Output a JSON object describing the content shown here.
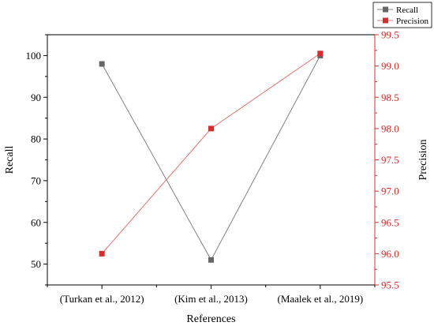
{
  "chart_data": {
    "type": "line",
    "title": "",
    "xlabel": "References",
    "categories": [
      "(Turkan et al., 2012)",
      "(Kim et al., 2013)",
      "(Maalek et al., 2019)"
    ],
    "left_axis": {
      "label": "Recall",
      "ylim": [
        45,
        105
      ],
      "ticks": [
        50,
        60,
        70,
        80,
        90,
        100
      ],
      "color": "#000000"
    },
    "right_axis": {
      "label": "Precision",
      "ylim": [
        95.5,
        99.5
      ],
      "ticks": [
        "95.5",
        "96.0",
        "96.5",
        "97.0",
        "97.5",
        "98.0",
        "98.5",
        "99.0",
        "99.5"
      ],
      "color": "#d32f2f"
    },
    "series": [
      {
        "name": "Recall",
        "axis": "left",
        "values": [
          98,
          51,
          100
        ],
        "color": "#808080",
        "marker_color": "#666666",
        "marker": "square"
      },
      {
        "name": "Precision",
        "axis": "right",
        "values": [
          96.0,
          98.0,
          99.2
        ],
        "color": "#e57373",
        "marker_color": "#d32f2f",
        "marker": "square"
      }
    ],
    "legend": {
      "position": "top-right"
    },
    "grid": false
  }
}
